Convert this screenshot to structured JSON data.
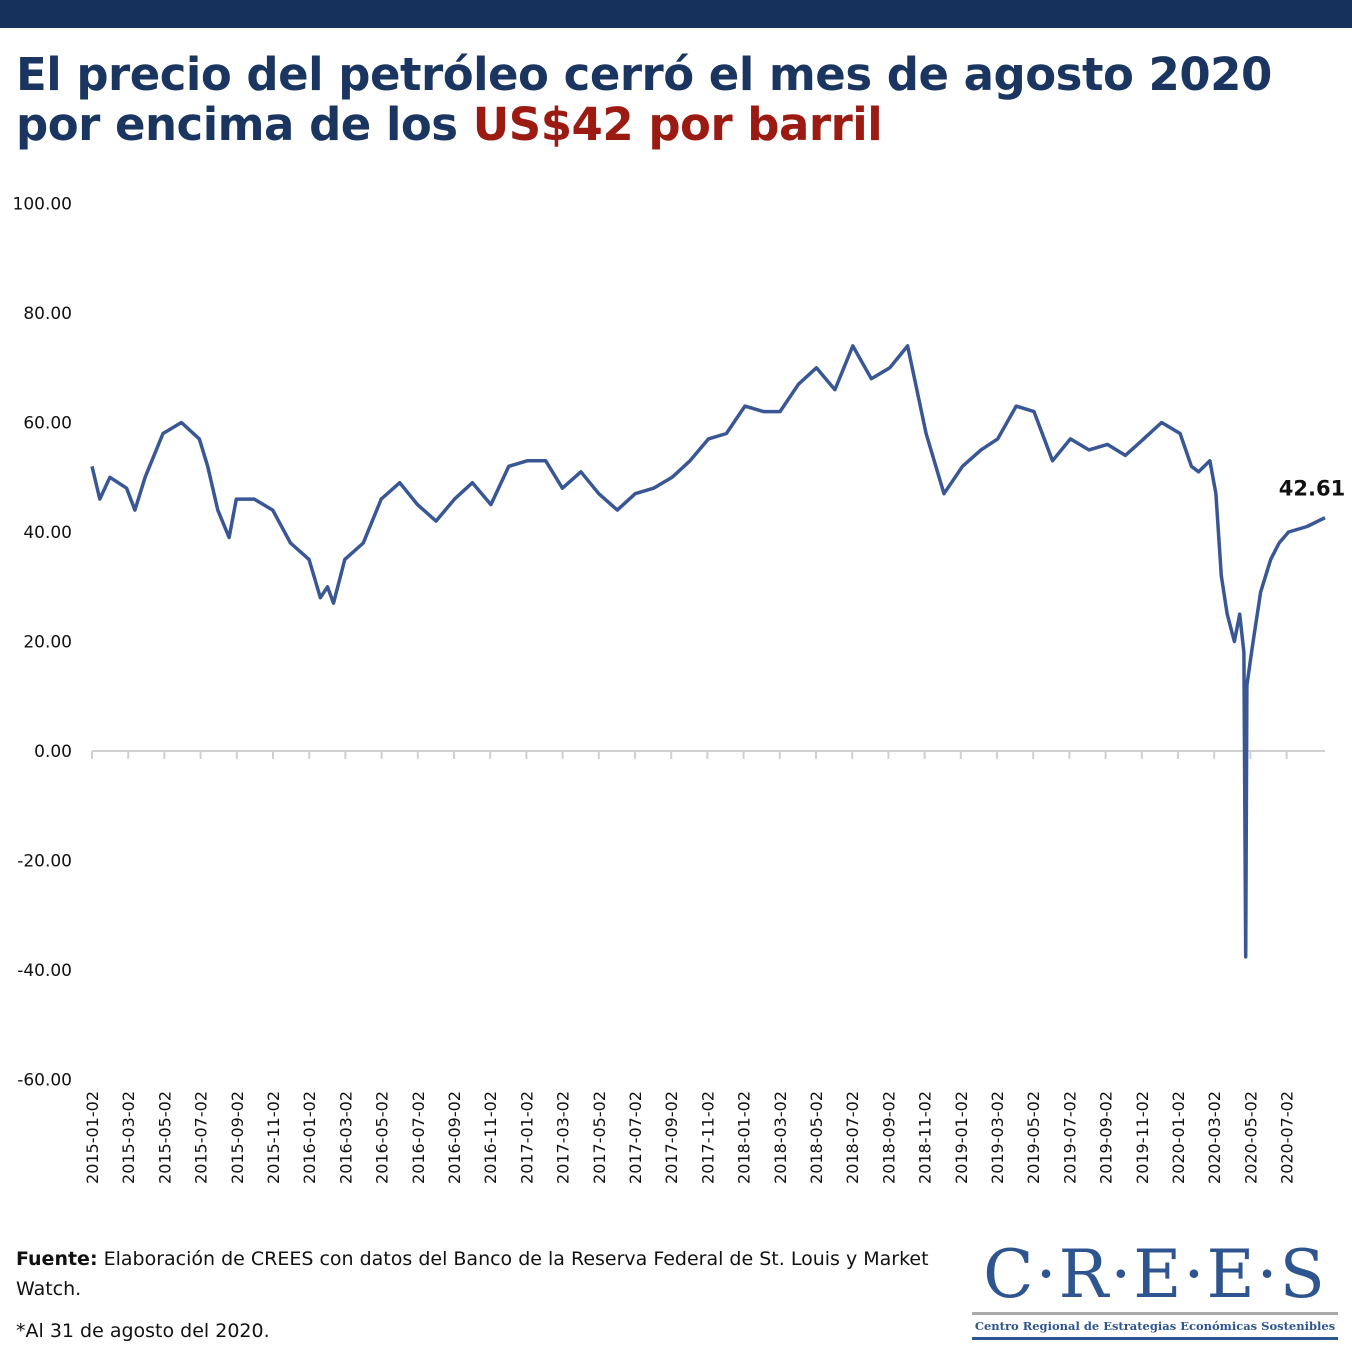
{
  "header": {
    "title_part1": "El precio del petróleo cerró el mes de agosto 2020 por encima de los ",
    "title_highlight": "US$42 por barril"
  },
  "colors": {
    "navy": "#1a355f",
    "highlight_red": "#9b1b12",
    "line": "#3a5795"
  },
  "chart_data": {
    "type": "line",
    "title": "",
    "xlabel": "",
    "ylabel": "",
    "ylim": [
      -60,
      100
    ],
    "grid": false,
    "y_ticks": [
      "100.00",
      "80.00",
      "60.00",
      "40.00",
      "20.00",
      "0.00",
      "-20.00",
      "-40.00",
      "-60.00"
    ],
    "x_ticks": [
      "2015-01-02",
      "2015-03-02",
      "2015-05-02",
      "2015-07-02",
      "2015-09-02",
      "2015-11-02",
      "2016-01-02",
      "2016-03-02",
      "2016-05-02",
      "2016-07-02",
      "2016-09-02",
      "2016-11-02",
      "2017-01-02",
      "2017-03-02",
      "2017-05-02",
      "2017-07-02",
      "2017-09-02",
      "2017-11-02",
      "2018-01-02",
      "2018-03-02",
      "2018-05-02",
      "2018-07-02",
      "2018-09-02",
      "2018-11-02",
      "2019-01-02",
      "2019-03-02",
      "2019-05-02",
      "2019-07-02",
      "2019-09-02",
      "2019-11-02",
      "2020-01-02",
      "2020-03-02",
      "2020-05-02",
      "2020-07-02"
    ],
    "annotation": "42.61",
    "x": [
      "2015-01-02",
      "2015-01-15",
      "2015-02-01",
      "2015-03-01",
      "2015-03-15",
      "2015-04-01",
      "2015-05-01",
      "2015-06-01",
      "2015-07-01",
      "2015-07-15",
      "2015-08-01",
      "2015-08-20",
      "2015-09-01",
      "2015-10-01",
      "2015-11-01",
      "2015-12-01",
      "2016-01-01",
      "2016-01-20",
      "2016-02-01",
      "2016-02-11",
      "2016-03-01",
      "2016-04-01",
      "2016-05-01",
      "2016-06-01",
      "2016-07-01",
      "2016-08-01",
      "2016-09-01",
      "2016-10-01",
      "2016-11-01",
      "2016-12-01",
      "2017-01-01",
      "2017-02-01",
      "2017-03-01",
      "2017-04-01",
      "2017-05-01",
      "2017-06-01",
      "2017-07-01",
      "2017-08-01",
      "2017-09-01",
      "2017-10-01",
      "2017-11-01",
      "2017-12-01",
      "2018-01-01",
      "2018-02-01",
      "2018-03-01",
      "2018-04-01",
      "2018-05-01",
      "2018-06-01",
      "2018-07-01",
      "2018-08-01",
      "2018-09-01",
      "2018-10-01",
      "2018-11-01",
      "2018-12-01",
      "2019-01-01",
      "2019-02-01",
      "2019-03-01",
      "2019-04-01",
      "2019-05-01",
      "2019-06-01",
      "2019-07-01",
      "2019-08-01",
      "2019-09-01",
      "2019-10-01",
      "2019-11-01",
      "2019-12-01",
      "2020-01-01",
      "2020-01-20",
      "2020-02-01",
      "2020-02-20",
      "2020-03-01",
      "2020-03-10",
      "2020-03-20",
      "2020-04-01",
      "2020-04-10",
      "2020-04-17",
      "2020-04-20",
      "2020-04-22",
      "2020-05-01",
      "2020-05-15",
      "2020-06-01",
      "2020-06-15",
      "2020-07-01",
      "2020-08-01",
      "2020-08-31"
    ],
    "series": [
      {
        "values": [
          52,
          46,
          50,
          48,
          44,
          50,
          58,
          60,
          57,
          52,
          44,
          39,
          46,
          46,
          44,
          38,
          35,
          28,
          30,
          27,
          35,
          38,
          46,
          49,
          45,
          42,
          46,
          49,
          45,
          52,
          53,
          53,
          48,
          51,
          47,
          44,
          47,
          48,
          50,
          53,
          57,
          58,
          63,
          62,
          62,
          67,
          70,
          66,
          74,
          68,
          70,
          74,
          58,
          47,
          52,
          55,
          57,
          63,
          62,
          53,
          57,
          55,
          56,
          54,
          57,
          60,
          58,
          52,
          51,
          53,
          47,
          32,
          25,
          20,
          25,
          18,
          -37.6,
          12,
          19,
          29,
          35,
          38,
          40,
          41,
          42.61
        ]
      }
    ]
  },
  "footer": {
    "source_label": "Fuente:",
    "source_text": " Elaboración de CREES con datos del Banco de la Reserva Federal de St. Louis y Market Watch.",
    "note": "*Al 31 de agosto del 2020.",
    "logo_text": "C·R·E·E·S",
    "logo_subtitle": "Centro Regional de Estrategias Económicas Sostenibles"
  }
}
